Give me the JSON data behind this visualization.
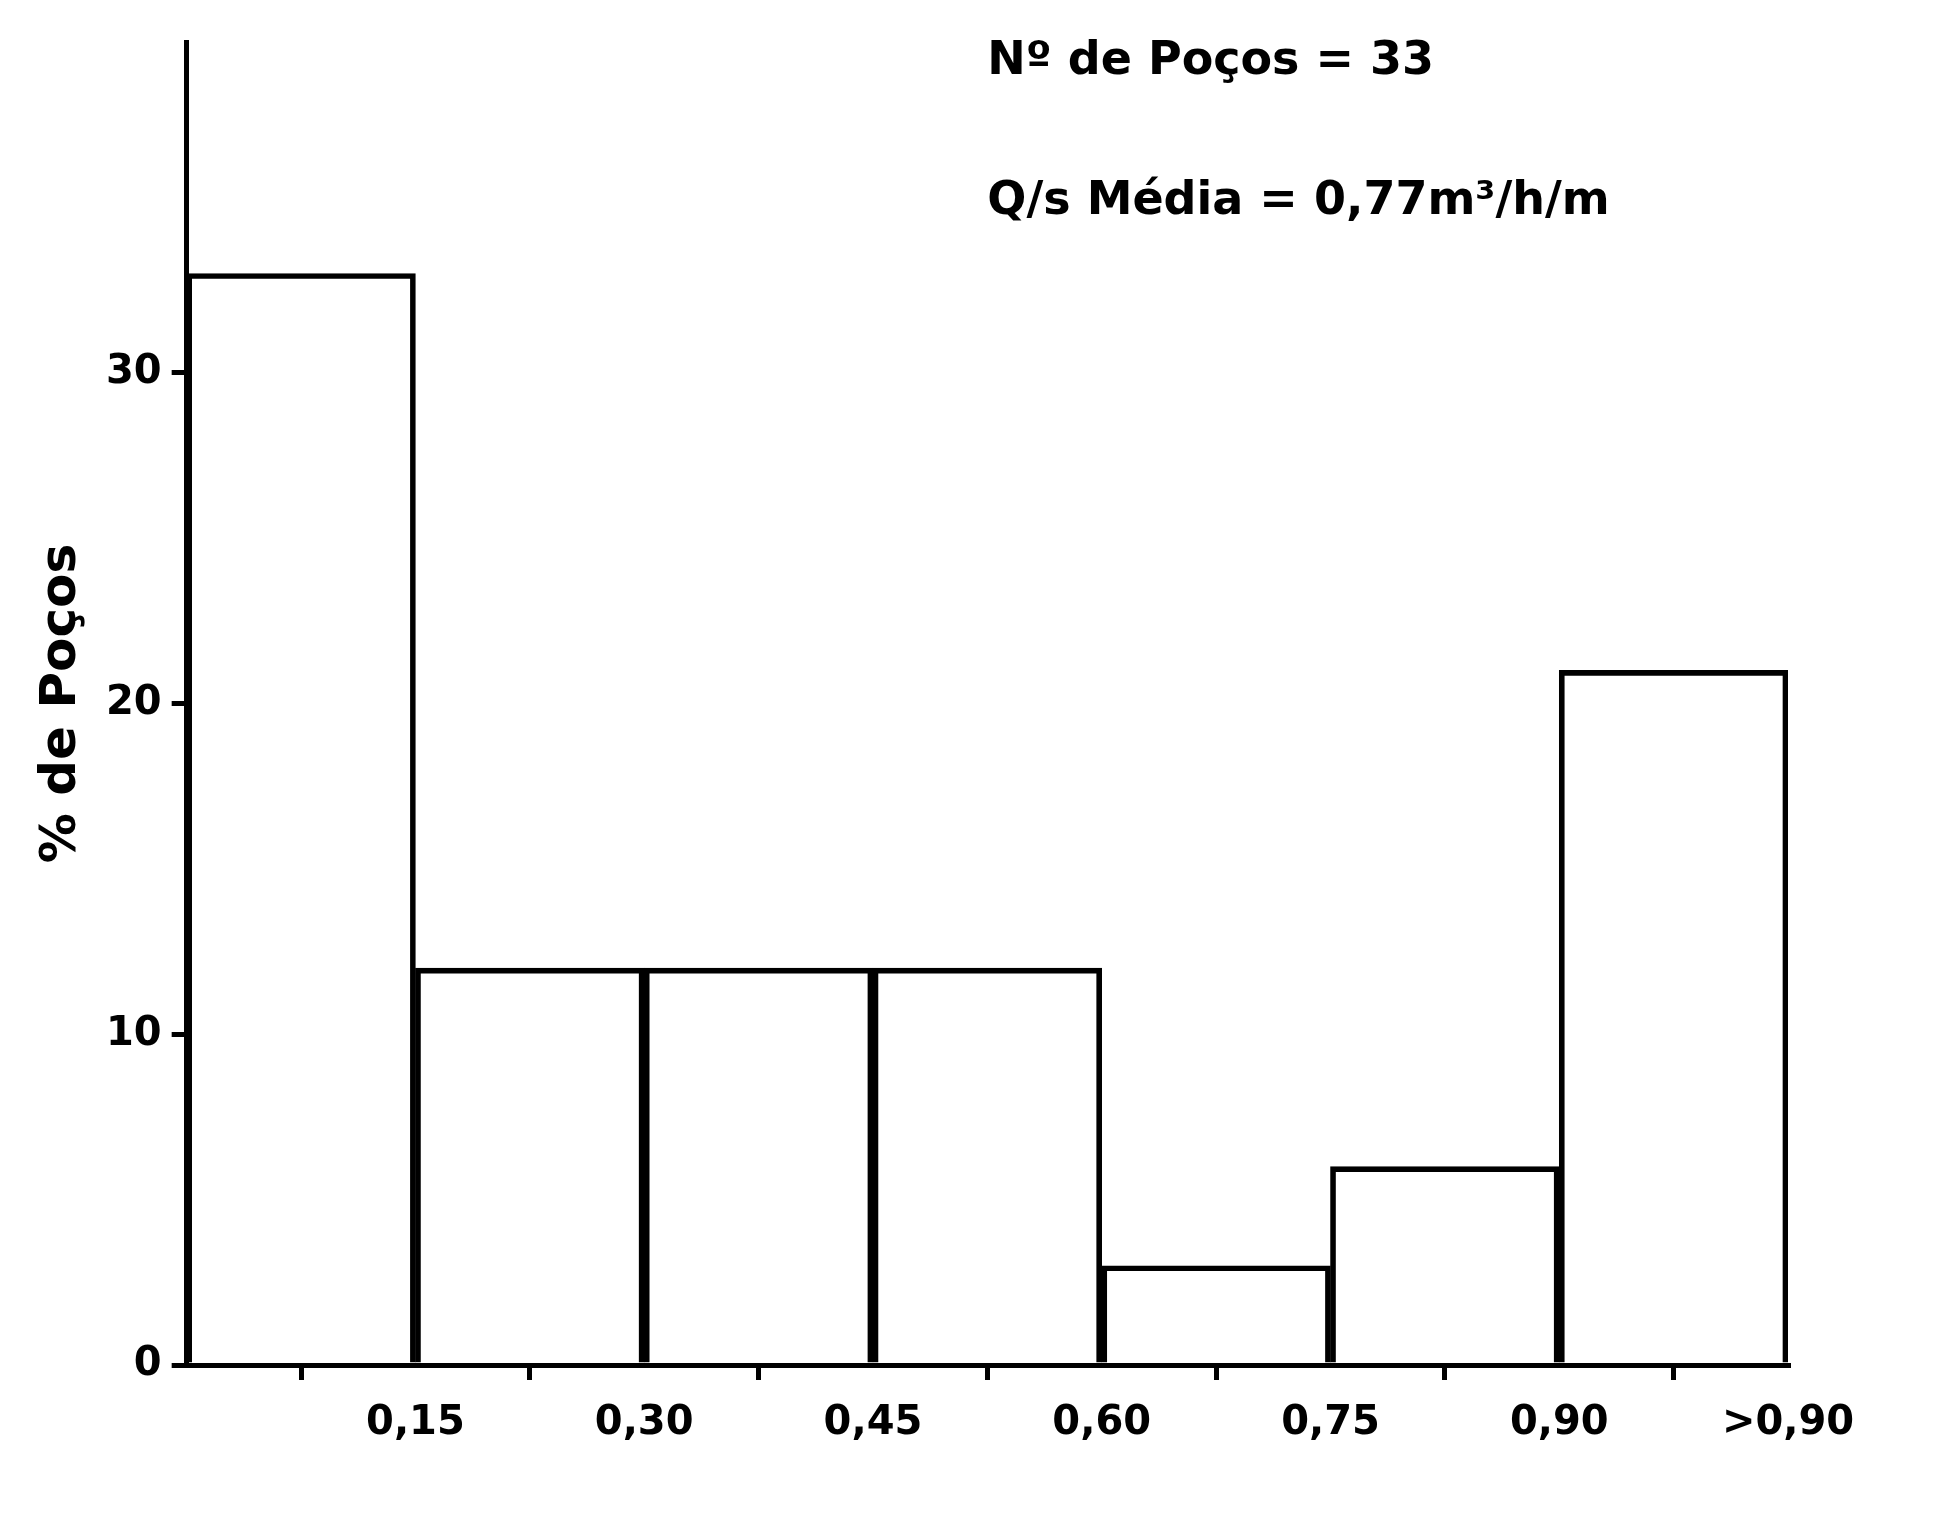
{
  "chart_data": {
    "type": "histogram",
    "ylabel": "% de Poços",
    "bins": [
      0,
      0.15,
      0.3,
      0.45,
      0.6,
      0.75,
      0.9,
      1.05
    ],
    "values": [
      33,
      12,
      12,
      12,
      3,
      6,
      21
    ],
    "color": "#000000",
    "xlim": [
      0,
      1.05
    ],
    "xticks": [
      {
        "value": 0.15,
        "label": "0,15"
      },
      {
        "value": 0.3,
        "label": "0,30"
      },
      {
        "value": 0.45,
        "label": "0,45"
      },
      {
        "value": 0.6,
        "label": "0,60"
      },
      {
        "value": 0.75,
        "label": "0,75"
      },
      {
        "value": 0.9,
        "label": "0,90"
      },
      {
        "value": 1.05,
        "label": ">0,90"
      }
    ],
    "ylim": [
      0,
      40
    ],
    "yticks": [
      0,
      10,
      20,
      30
    ],
    "grid": false,
    "legend": false,
    "annotations": [
      "Nº de Poços = 33",
      "Q/s Média = 0,77m³/h/m"
    ]
  }
}
